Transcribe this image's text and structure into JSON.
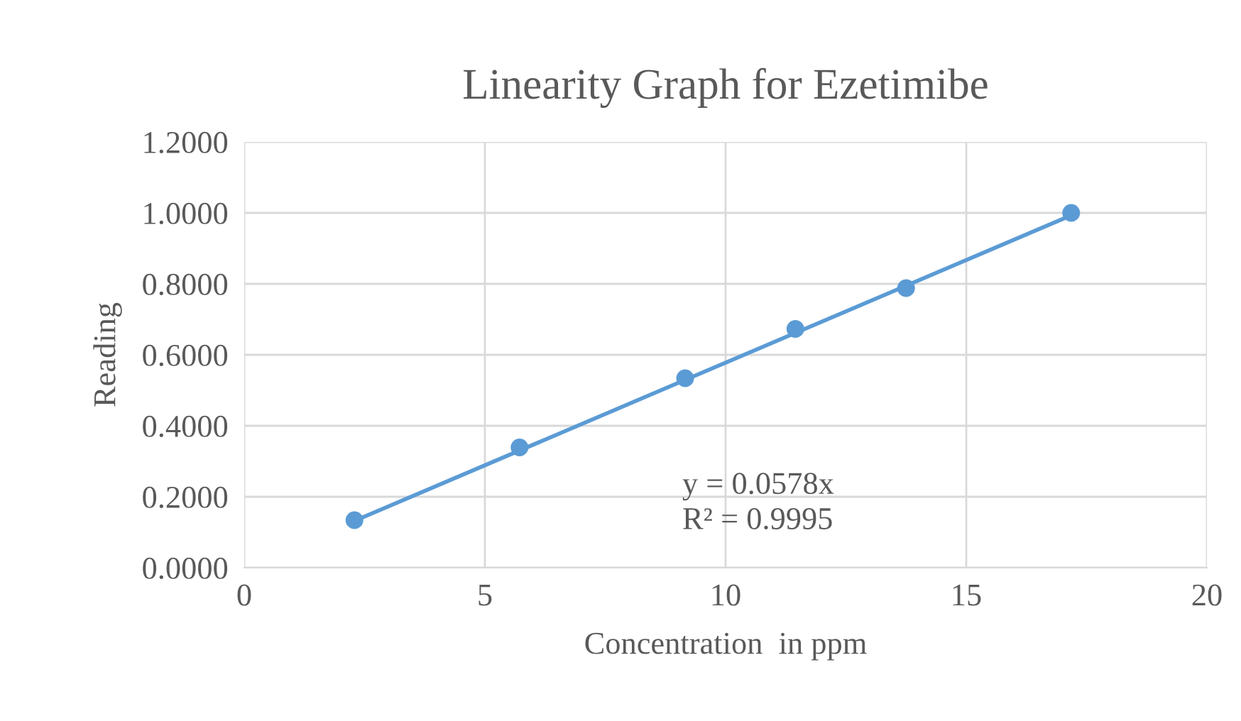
{
  "chart_data": {
    "type": "scatter",
    "title": "Linearity Graph for Ezetimibe",
    "xlabel": "Concentration  in ppm",
    "ylabel": "Reading",
    "series": [
      {
        "color": "#5b9bd5",
        "x": [
          2.29,
          5.72,
          9.16,
          11.45,
          13.75,
          17.18
        ],
        "values": [
          0.134,
          0.339,
          0.534,
          0.673,
          0.788,
          1.0
        ],
        "marker": "circle"
      },
      {
        "type": "line",
        "color": "#5b9bd5",
        "x": [
          2.29,
          17.18
        ],
        "values": [
          0.132,
          0.993
        ],
        "marker": "none",
        "line_style": "solid"
      }
    ],
    "xlim": [
      0,
      20
    ],
    "xticks": [
      0,
      5,
      10,
      15,
      20
    ],
    "ylim": [
      0,
      1.2
    ],
    "yticks": [
      {
        "value": 0,
        "label": "0.0000"
      },
      {
        "value": 0.2,
        "label": "0.2000"
      },
      {
        "value": 0.4,
        "label": "0.4000"
      },
      {
        "value": 0.6,
        "label": "0.6000"
      },
      {
        "value": 0.8,
        "label": "0.8000"
      },
      {
        "value": 1.0,
        "label": "1.0000"
      },
      {
        "value": 1.2,
        "label": "1.2000"
      }
    ],
    "grid": true,
    "legend": false,
    "annotations": [
      "y = 0.0578x\nR² = 0.9995"
    ]
  }
}
